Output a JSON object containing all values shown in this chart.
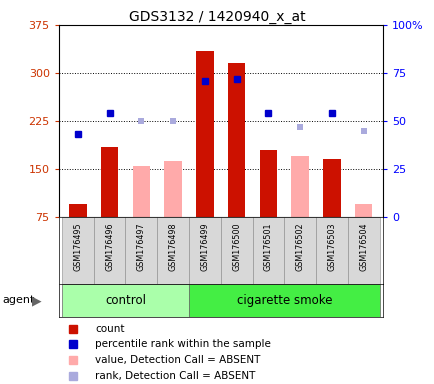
{
  "title": "GDS3132 / 1420940_x_at",
  "samples": [
    "GSM176495",
    "GSM176496",
    "GSM176497",
    "GSM176498",
    "GSM176499",
    "GSM176500",
    "GSM176501",
    "GSM176502",
    "GSM176503",
    "GSM176504"
  ],
  "count_values": [
    95,
    185,
    null,
    null,
    335,
    315,
    180,
    null,
    165,
    null
  ],
  "count_absent_values": [
    null,
    null,
    155,
    163,
    null,
    null,
    null,
    170,
    null,
    95
  ],
  "rank_present_pct": [
    43,
    54,
    null,
    null,
    71,
    72,
    54,
    null,
    54,
    null
  ],
  "rank_absent_pct": [
    null,
    null,
    50,
    50,
    null,
    null,
    null,
    47,
    null,
    45
  ],
  "left_ylim": [
    75,
    375
  ],
  "left_yticks": [
    75,
    150,
    225,
    300,
    375
  ],
  "left_yticklabels": [
    "75",
    "150",
    "225",
    "300",
    "375"
  ],
  "right_yticks": [
    0,
    25,
    50,
    75,
    100
  ],
  "right_yticklabels": [
    "0",
    "25",
    "50",
    "75",
    "100%"
  ],
  "bar_color_present": "#cc1100",
  "bar_color_absent": "#ffaaaa",
  "rank_present_color": "#0000cc",
  "rank_absent_color": "#aaaadd",
  "control_bg": "#aaffaa",
  "smoke_bg": "#44ee44",
  "n_control": 4,
  "agent_label": "agent",
  "control_label": "control",
  "smoke_label": "cigarette smoke",
  "legend_items": [
    [
      "#cc1100",
      "count"
    ],
    [
      "#0000cc",
      "percentile rank within the sample"
    ],
    [
      "#ffaaaa",
      "value, Detection Call = ABSENT"
    ],
    [
      "#aaaadd",
      "rank, Detection Call = ABSENT"
    ]
  ]
}
